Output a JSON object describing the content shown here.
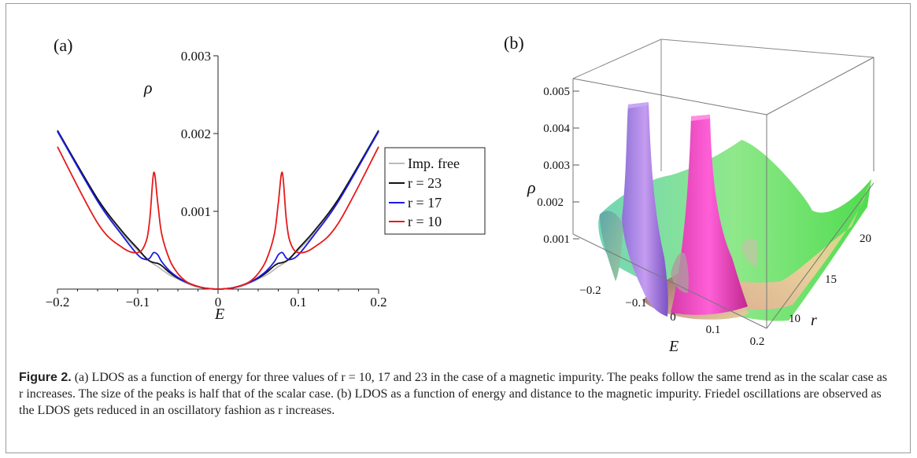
{
  "figure": {
    "caption_label": "Figure 2.",
    "caption_text": "(a) LDOS as a function of energy for three values of r = 10, 17 and 23 in the case of a magnetic impurity. The peaks follow the same trend as in the scalar case as r increases. The size of the peaks is half that of the scalar case. (b) LDOS as a function of energy and distance to the magnetic impurity. Friedel oscillations are observed as the LDOS gets reduced in an oscillatory fashion as r increases."
  },
  "chart_data": [
    {
      "type": "line",
      "panel_label": "(a)",
      "xlabel": "E",
      "ylabel": "ρ",
      "xlim": [
        -0.2,
        0.2
      ],
      "ylim": [
        0,
        0.003
      ],
      "x_ticks": [
        "−0.2",
        "−0.1",
        "0",
        "0.1",
        "0.2"
      ],
      "y_ticks": [
        "0.001",
        "0.002",
        "0.003"
      ],
      "legend_position": "right",
      "x": [
        -0.2,
        -0.15,
        -0.12,
        -0.1,
        -0.09,
        -0.085,
        -0.08,
        -0.075,
        -0.07,
        -0.06,
        -0.05,
        -0.04,
        -0.03,
        -0.02,
        -0.01,
        0,
        0.01,
        0.02,
        0.03,
        0.04,
        0.05,
        0.06,
        0.07,
        0.075,
        0.08,
        0.085,
        0.09,
        0.1,
        0.12,
        0.15,
        0.2
      ],
      "series": [
        {
          "name": "Imp. free",
          "color": "#bbbbbb",
          "values": [
            0.00202,
            0.00114,
            0.00072,
            0.0005,
            0.00041,
            0.00036,
            0.00032,
            0.00029,
            0.00025,
            0.00018,
            0.00013,
            8e-05,
            4e-05,
            2e-05,
            5e-06,
            0,
            5e-06,
            2e-05,
            4e-05,
            8e-05,
            0.00013,
            0.00018,
            0.00025,
            0.00029,
            0.00032,
            0.00036,
            0.00041,
            0.0005,
            0.00072,
            0.00114,
            0.00202
          ]
        },
        {
          "name": "r = 23",
          "color": "#111111",
          "values": [
            0.00204,
            0.00116,
            0.00075,
            0.00052,
            0.0004,
            0.00036,
            0.00034,
            0.00033,
            0.0003,
            0.00021,
            0.00014,
            9e-05,
            5e-05,
            2e-05,
            5e-06,
            0,
            5e-06,
            2e-05,
            5e-05,
            9e-05,
            0.00014,
            0.00021,
            0.0003,
            0.00033,
            0.00034,
            0.00036,
            0.0004,
            0.00052,
            0.00075,
            0.00116,
            0.00204
          ]
        },
        {
          "name": "r = 17",
          "color": "#1a1ae6",
          "values": [
            0.00203,
            0.00113,
            0.0007,
            0.00044,
            0.00038,
            0.0004,
            0.00047,
            0.00044,
            0.00035,
            0.00023,
            0.00015,
            9e-05,
            5e-05,
            2e-05,
            5e-06,
            0,
            5e-06,
            2e-05,
            5e-05,
            9e-05,
            0.00015,
            0.00023,
            0.00035,
            0.00044,
            0.00047,
            0.0004,
            0.00038,
            0.00044,
            0.0007,
            0.00113,
            0.00203
          ]
        },
        {
          "name": "r = 10",
          "color": "#e61a1a",
          "values": [
            0.00183,
            0.00085,
            0.00054,
            0.00047,
            0.0006,
            0.0009,
            0.0015,
            0.0011,
            0.0007,
            0.00037,
            0.0002,
            0.0001,
            5e-05,
            2e-05,
            5e-06,
            0,
            5e-06,
            2e-05,
            5e-05,
            0.0001,
            0.0002,
            0.00037,
            0.0007,
            0.0011,
            0.0015,
            0.0009,
            0.0006,
            0.00047,
            0.00054,
            0.00085,
            0.00183
          ]
        }
      ]
    },
    {
      "type": "surface3d",
      "panel_label": "(b)",
      "xlabel": "E",
      "ylabel": "r",
      "zlabel": "ρ",
      "x_ticks": [
        "−0.2",
        "−0.1",
        "0",
        "0.1",
        "0.2"
      ],
      "y_ticks": [
        "10",
        "15",
        "20"
      ],
      "z_ticks": [
        "0.001",
        "0.002",
        "0.003",
        "0.004",
        "0.005"
      ],
      "colors": [
        "#7fbfa0",
        "#b37fe6",
        "#ff4fd8",
        "#9ee68a",
        "#e6c0a0"
      ]
    }
  ]
}
